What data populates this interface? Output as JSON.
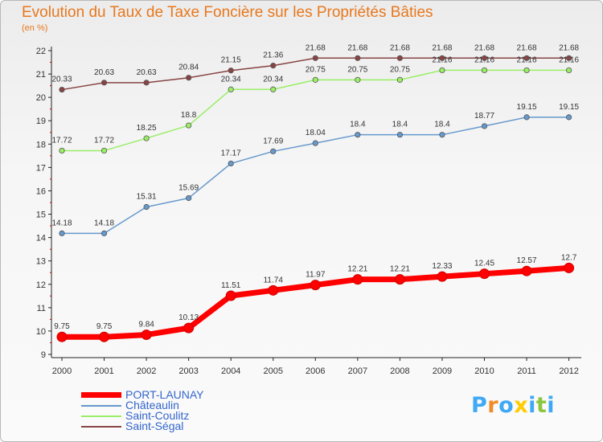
{
  "header": {
    "title": "Evolution du Taux de Taxe Foncière sur les Propriétés Bâties",
    "subtitle": "(en %)"
  },
  "brand": {
    "text": "Proxiti"
  },
  "chart_data": {
    "type": "line",
    "title": "Evolution du Taux de Taxe Foncière sur les Propriétés Bâties",
    "ylabel": "(en %)",
    "xlabel": "",
    "categories": [
      "2000",
      "2001",
      "2002",
      "2003",
      "2004",
      "2005",
      "2006",
      "2007",
      "2008",
      "2009",
      "2010",
      "2011",
      "2012"
    ],
    "ylim": [
      9,
      22
    ],
    "yticks": [
      "9",
      "10",
      "11",
      "12",
      "13",
      "14",
      "15",
      "16",
      "17",
      "18",
      "19",
      "20",
      "21",
      "22"
    ],
    "grid": false,
    "legend_position": "bottom-left",
    "series": [
      {
        "name": "PORT-LAUNAY",
        "color": "#ff0000",
        "values": [
          9.75,
          9.75,
          9.84,
          10.13,
          11.51,
          11.74,
          11.97,
          12.21,
          12.21,
          12.33,
          12.45,
          12.57,
          12.7
        ],
        "labels": [
          "9.75",
          "9.75",
          "9.84",
          "10.13",
          "11.51",
          "11.74",
          "11.97",
          "12.21",
          "12.21",
          "12.33",
          "12.45",
          "12.57",
          "12.7"
        ]
      },
      {
        "name": "Châteaulin",
        "color": "#6699cc",
        "values": [
          14.18,
          14.18,
          15.31,
          15.69,
          17.17,
          17.69,
          18.04,
          18.4,
          18.4,
          18.4,
          18.77,
          19.15,
          19.15
        ],
        "labels": [
          "14.18",
          "14.18",
          "15.31",
          "15.69",
          "17.17",
          "17.69",
          "18.04",
          "18.4",
          "18.4",
          "18.4",
          "18.77",
          "19.15",
          "19.15"
        ]
      },
      {
        "name": "Saint-Coulitz",
        "color": "#99ee66",
        "values": [
          17.72,
          17.72,
          18.25,
          18.8,
          20.34,
          20.34,
          20.75,
          20.75,
          20.75,
          21.16,
          21.16,
          21.16,
          21.16
        ],
        "labels": [
          "17.72",
          "17.72",
          "18.25",
          "18.8",
          "20.34",
          "20.34",
          "20.75",
          "20.75",
          "20.75",
          "21.16",
          "21.16",
          "21.16",
          "21.16"
        ]
      },
      {
        "name": "Saint-Ségal",
        "color": "#884444",
        "values": [
          20.33,
          20.63,
          20.63,
          20.84,
          21.15,
          21.36,
          21.68,
          21.68,
          21.68,
          21.68,
          21.68,
          21.68,
          21.68
        ],
        "labels": [
          "20.33",
          "20.63",
          "20.63",
          "20.84",
          "21.15",
          "21.36",
          "21.68",
          "21.68",
          "21.68",
          "21.68",
          "21.68",
          "21.68",
          "21.68"
        ]
      }
    ]
  }
}
